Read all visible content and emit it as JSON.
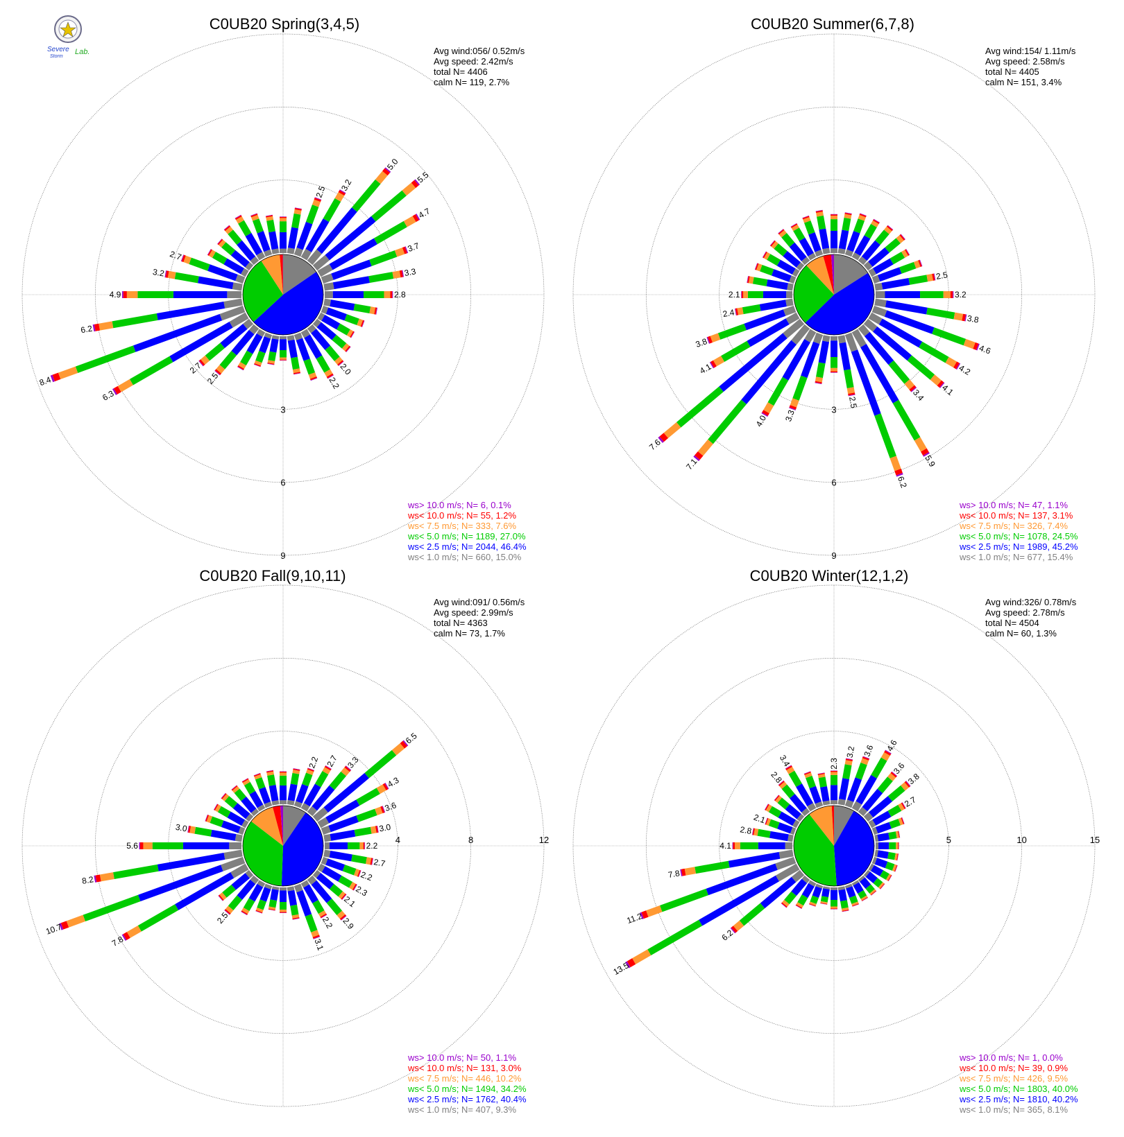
{
  "logo": {
    "line1": "Severe",
    "line2": "Storm",
    "line3": "Lab."
  },
  "colors": {
    "lt1": "#808080",
    "lt25": "#0000ff",
    "lt5": "#00cc00",
    "lt75": "#ff9933",
    "lt10": "#ff0000",
    "gt10": "#9900cc"
  },
  "chart_data": [
    {
      "type": "wind-rose",
      "title": "C0UB20 Spring(3,4,5)",
      "stats": {
        "avg_wind": "Avg wind:056/ 0.52m/s",
        "avg_speed": "Avg speed: 2.42m/s",
        "total": "total N=       4406",
        "calm": "calm N=     119,   2.7%"
      },
      "rings": [
        3,
        6,
        9
      ],
      "ring_labels": [
        "3",
        "6",
        "9"
      ],
      "directions_deg": [
        0,
        10,
        20,
        30,
        40,
        50,
        60,
        70,
        80,
        90,
        100,
        110,
        120,
        130,
        140,
        150,
        160,
        170,
        180,
        190,
        200,
        210,
        220,
        230,
        240,
        250,
        260,
        270,
        280,
        290,
        300,
        310,
        320,
        330,
        340,
        350
      ],
      "totals": [
        1.5,
        1.9,
        2.5,
        3.2,
        5.0,
        5.5,
        4.7,
        3.7,
        3.3,
        2.8,
        2.2,
        1.8,
        1.6,
        1.8,
        2.0,
        2.2,
        2.0,
        1.6,
        1.0,
        1.2,
        1.4,
        1.8,
        2.5,
        2.7,
        6.3,
        8.4,
        6.2,
        4.9,
        3.2,
        2.7,
        1.8,
        1.7,
        1.9,
        2.0,
        1.8,
        1.6
      ],
      "labeled": [
        0,
        0,
        1,
        1,
        1,
        1,
        1,
        1,
        1,
        1,
        0,
        0,
        0,
        0,
        1,
        1,
        0,
        0,
        0,
        0,
        0,
        0,
        1,
        1,
        1,
        1,
        1,
        1,
        1,
        1,
        0,
        0,
        0,
        0,
        0,
        0
      ],
      "legend": [
        {
          "text": "ws> 10.0 m/s; N=     6,  0.1%",
          "color": "#9900cc"
        },
        {
          "text": "ws< 10.0 m/s; N=    55,  1.2%",
          "color": "#ff0000"
        },
        {
          "text": "ws<  7.5 m/s; N=   333,  7.6%",
          "color": "#ff9933"
        },
        {
          "text": "ws<  5.0 m/s; N=  1189, 27.0%",
          "color": "#00cc00"
        },
        {
          "text": "ws<  2.5 m/s; N=  2044, 46.4%",
          "color": "#0000ff"
        },
        {
          "text": "ws<  1.0 m/s; N=   660, 15.0%",
          "color": "#808080"
        }
      ]
    },
    {
      "type": "wind-rose",
      "title": "C0UB20 Summer(6,7,8)",
      "stats": {
        "avg_wind": "Avg wind:154/ 1.11m/s",
        "avg_speed": "Avg speed: 2.58m/s",
        "total": "total N=       4405",
        "calm": "calm N=     151,   3.4%"
      },
      "rings": [
        3,
        6,
        9
      ],
      "ring_labels": [
        "3",
        "6",
        "9"
      ],
      "directions_deg": [
        0,
        10,
        20,
        30,
        40,
        50,
        60,
        70,
        80,
        90,
        100,
        110,
        120,
        130,
        140,
        150,
        160,
        170,
        180,
        190,
        200,
        210,
        220,
        230,
        240,
        250,
        260,
        270,
        280,
        290,
        300,
        310,
        320,
        330,
        340,
        350
      ],
      "totals": [
        1.6,
        1.7,
        1.8,
        1.8,
        1.9,
        2.0,
        1.8,
        2.1,
        2.5,
        3.2,
        3.8,
        4.6,
        4.2,
        4.1,
        3.4,
        5.9,
        6.2,
        2.5,
        1.5,
        2.0,
        3.3,
        4.0,
        7.1,
        7.6,
        4.1,
        3.8,
        2.4,
        2.1,
        1.9,
        1.7,
        1.6,
        1.6,
        1.7,
        1.6,
        1.7,
        1.8
      ],
      "labeled": [
        0,
        0,
        0,
        0,
        0,
        0,
        0,
        0,
        1,
        1,
        1,
        1,
        1,
        1,
        1,
        1,
        1,
        1,
        0,
        0,
        1,
        1,
        1,
        1,
        1,
        1,
        1,
        1,
        0,
        0,
        0,
        0,
        0,
        0,
        0,
        0
      ],
      "legend": [
        {
          "text": "ws> 10.0 m/s; N=    47,  1.1%",
          "color": "#9900cc"
        },
        {
          "text": "ws< 10.0 m/s; N=   137,  3.1%",
          "color": "#ff0000"
        },
        {
          "text": "ws<  7.5 m/s; N=   326,  7.4%",
          "color": "#ff9933"
        },
        {
          "text": "ws<  5.0 m/s; N=  1078, 24.5%",
          "color": "#00cc00"
        },
        {
          "text": "ws<  2.5 m/s; N=  1989, 45.2%",
          "color": "#0000ff"
        },
        {
          "text": "ws<  1.0 m/s; N=   677, 15.4%",
          "color": "#808080"
        }
      ]
    },
    {
      "type": "wind-rose",
      "title": "C0UB20 Fall(9,10,11)",
      "stats": {
        "avg_wind": "Avg wind:091/ 0.56m/s",
        "avg_speed": "Avg speed: 2.99m/s",
        "total": "total N=       4363",
        "calm": "calm N=       73,   1.7%"
      },
      "rings": [
        4,
        8,
        12
      ],
      "ring_labels": [
        "4",
        "8",
        "12"
      ],
      "directions_deg": [
        0,
        10,
        20,
        30,
        40,
        50,
        60,
        70,
        80,
        90,
        100,
        110,
        120,
        130,
        140,
        150,
        160,
        170,
        180,
        190,
        200,
        210,
        220,
        230,
        240,
        250,
        260,
        270,
        280,
        290,
        300,
        310,
        320,
        330,
        340,
        350
      ],
      "totals": [
        1.8,
        2.0,
        2.2,
        2.7,
        3.3,
        6.5,
        4.3,
        3.6,
        3.0,
        2.2,
        2.7,
        2.2,
        2.3,
        2.1,
        2.9,
        2.2,
        3.1,
        1.8,
        1.4,
        1.3,
        1.6,
        2.0,
        2.5,
        2.2,
        7.8,
        10.7,
        8.2,
        5.6,
        3.0,
        2.2,
        2.0,
        2.0,
        1.9,
        1.9,
        1.9,
        1.9
      ],
      "labeled": [
        0,
        0,
        1,
        1,
        1,
        1,
        1,
        1,
        1,
        1,
        1,
        1,
        1,
        1,
        1,
        1,
        1,
        0,
        0,
        0,
        0,
        0,
        1,
        0,
        1,
        1,
        1,
        1,
        1,
        0,
        0,
        0,
        0,
        0,
        0,
        0
      ],
      "legend": [
        {
          "text": "ws> 10.0 m/s; N=    50,  1.1%",
          "color": "#9900cc"
        },
        {
          "text": "ws< 10.0 m/s; N=   131,  3.0%",
          "color": "#ff0000"
        },
        {
          "text": "ws<  7.5 m/s; N=   446, 10.2%",
          "color": "#ff9933"
        },
        {
          "text": "ws<  5.0 m/s; N=  1494, 34.2%",
          "color": "#00cc00"
        },
        {
          "text": "ws<  2.5 m/s; N=  1762, 40.4%",
          "color": "#0000ff"
        },
        {
          "text": "ws<  1.0 m/s; N=   407,  9.3%",
          "color": "#808080"
        }
      ]
    },
    {
      "type": "wind-rose",
      "title": "C0UB20 Winter(12,1,2)",
      "stats": {
        "avg_wind": "Avg wind:326/ 0.78m/s",
        "avg_speed": "Avg speed: 2.78m/s",
        "total": "total N=       4504",
        "calm": "calm N=       60,   1.3%"
      },
      "rings": [
        5,
        10,
        15
      ],
      "ring_labels": [
        "5",
        "10",
        "15"
      ],
      "directions_deg": [
        0,
        10,
        20,
        30,
        40,
        50,
        60,
        70,
        80,
        90,
        100,
        110,
        120,
        130,
        140,
        150,
        160,
        170,
        180,
        190,
        200,
        210,
        220,
        230,
        240,
        250,
        260,
        270,
        280,
        290,
        300,
        310,
        320,
        330,
        340,
        350
      ],
      "totals": [
        2.3,
        3.2,
        3.6,
        4.6,
        3.6,
        3.8,
        2.7,
        2.2,
        1.7,
        1.6,
        1.6,
        1.7,
        1.6,
        1.5,
        1.4,
        1.4,
        1.5,
        1.7,
        1.5,
        1.2,
        1.5,
        2.0,
        2.5,
        6.2,
        13.5,
        11.2,
        7.8,
        4.1,
        2.8,
        2.1,
        2.5,
        2.3,
        2.8,
        3.4,
        2.5,
        2.2
      ],
      "labeled": [
        1,
        1,
        1,
        1,
        1,
        1,
        1,
        0,
        0,
        0,
        0,
        0,
        0,
        0,
        0,
        0,
        0,
        0,
        0,
        0,
        0,
        0,
        0,
        1,
        1,
        1,
        1,
        1,
        1,
        1,
        0,
        0,
        1,
        1,
        0,
        0
      ],
      "legend": [
        {
          "text": "ws> 10.0 m/s; N=     1,  0.0%",
          "color": "#9900cc"
        },
        {
          "text": "ws< 10.0 m/s; N=    39,  0.9%",
          "color": "#ff0000"
        },
        {
          "text": "ws<  7.5 m/s; N=   426,  9.5%",
          "color": "#ff9933"
        },
        {
          "text": "ws<  5.0 m/s; N=  1803, 40.0%",
          "color": "#00cc00"
        },
        {
          "text": "ws<  2.5 m/s; N=  1810, 40.2%",
          "color": "#0000ff"
        },
        {
          "text": "ws<  1.0 m/s; N=   365,  8.1%",
          "color": "#808080"
        }
      ]
    }
  ]
}
